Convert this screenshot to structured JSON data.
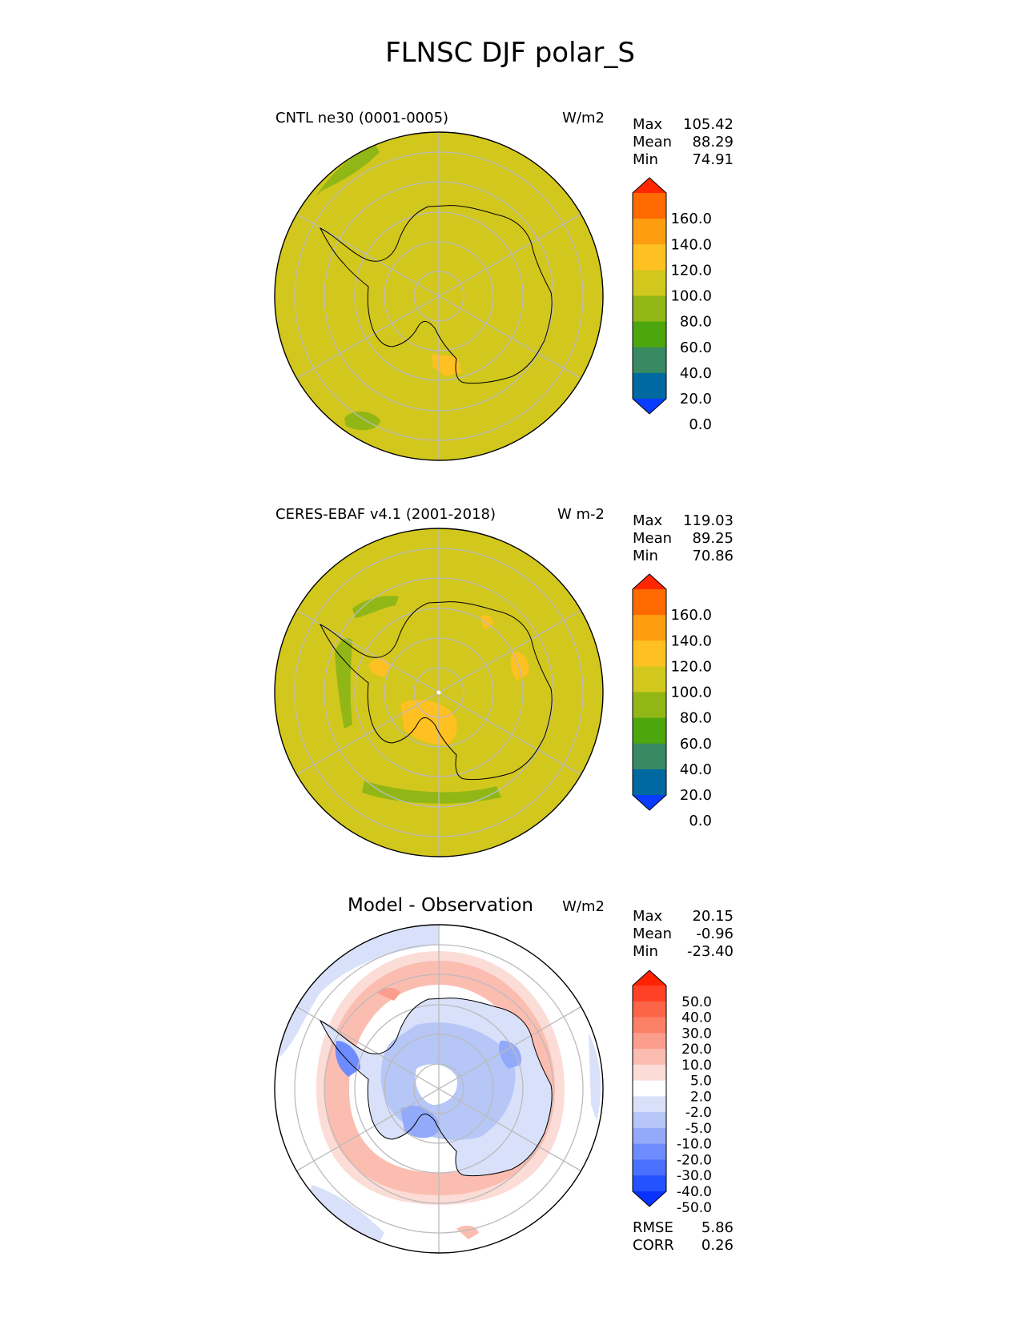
{
  "figure_title": "FLNSC DJF polar_S",
  "chart_data": [
    {
      "type": "heatmap",
      "projection": "south-polar-stereographic",
      "title": "CNTL ne30 (0001-0005)",
      "units": "W/m2",
      "stats": [
        {
          "label": "Max",
          "value": "105.42"
        },
        {
          "label": "Mean",
          "value": "88.29"
        },
        {
          "label": "Min",
          "value": "74.91"
        }
      ],
      "colorbar": {
        "levels": [
          0,
          20,
          40,
          60,
          80,
          100,
          120,
          140,
          160
        ],
        "tick_labels": [
          "160.0",
          "140.0",
          "120.0",
          "100.0",
          "80.0",
          "60.0",
          "40.0",
          "20.0",
          "0.0"
        ],
        "colors": [
          "#0a3cff",
          "#00699f",
          "#388a63",
          "#4da60d",
          "#90b716",
          "#d2c71d",
          "#ffc022",
          "#ff9d10",
          "#ff6a00",
          "#ff2600"
        ],
        "extend": "both"
      },
      "background_color": "#d2c71d"
    },
    {
      "type": "heatmap",
      "projection": "south-polar-stereographic",
      "title": "CERES-EBAF v4.1 (2001-2018)",
      "units": "W m-2",
      "stats": [
        {
          "label": "Max",
          "value": "119.03"
        },
        {
          "label": "Mean",
          "value": "89.25"
        },
        {
          "label": "Min",
          "value": "70.86"
        }
      ],
      "colorbar": {
        "levels": [
          0,
          20,
          40,
          60,
          80,
          100,
          120,
          140,
          160
        ],
        "tick_labels": [
          "160.0",
          "140.0",
          "120.0",
          "100.0",
          "80.0",
          "60.0",
          "40.0",
          "20.0",
          "0.0"
        ],
        "colors": [
          "#0a3cff",
          "#00699f",
          "#388a63",
          "#4da60d",
          "#90b716",
          "#d2c71d",
          "#ffc022",
          "#ff9d10",
          "#ff6a00",
          "#ff2600"
        ],
        "extend": "both"
      },
      "background_color": "#d2c71d"
    },
    {
      "type": "heatmap",
      "projection": "south-polar-stereographic",
      "title": "Model - Observation",
      "units": "W/m2",
      "stats": [
        {
          "label": "Max",
          "value": "20.15"
        },
        {
          "label": "Mean",
          "value": "-0.96"
        },
        {
          "label": "Min",
          "value": "-23.40"
        }
      ],
      "extra_stats": [
        {
          "label": "RMSE",
          "value": "5.86"
        },
        {
          "label": "CORR",
          "value": "0.26"
        }
      ],
      "colorbar": {
        "levels": [
          -50,
          -40,
          -30,
          -20,
          -10,
          -5,
          -2,
          2,
          5,
          10,
          20,
          30,
          40,
          50
        ],
        "tick_labels": [
          "50.0",
          "40.0",
          "30.0",
          "20.0",
          "10.0",
          "5.0",
          "2.0",
          "-2.0",
          "-5.0",
          "-10.0",
          "-20.0",
          "-30.0",
          "-40.0",
          "-50.0"
        ],
        "colors": [
          "#0a32ff",
          "#2352ff",
          "#4a70ff",
          "#6e8cff",
          "#93aafb",
          "#b6c6f6",
          "#d9e1fa",
          "#ffffff",
          "#fcdcd6",
          "#fcbdb1",
          "#fc9e8d",
          "#fc8066",
          "#fc6548",
          "#ff4225",
          "#ff2200"
        ],
        "extend": "both"
      },
      "background_color": "#ffffff"
    }
  ]
}
